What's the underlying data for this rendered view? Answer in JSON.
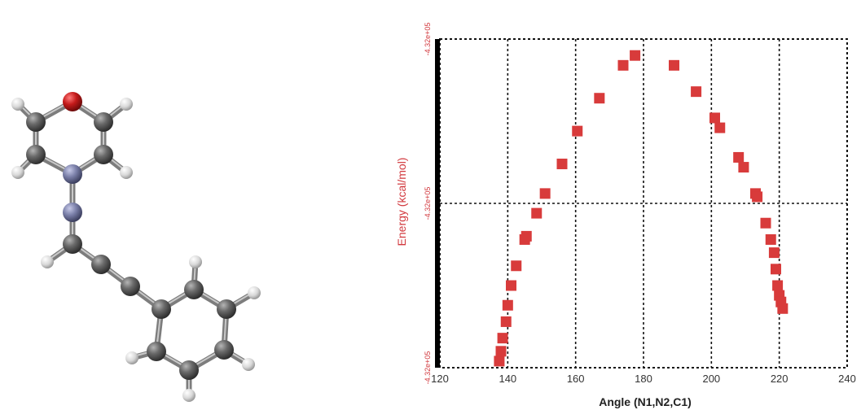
{
  "molecule": {
    "atoms": [
      {
        "el": "H",
        "color": "#d9d9d9",
        "r": 8
      },
      {
        "el": "C",
        "color": "#595959",
        "r": 12
      },
      {
        "el": "O",
        "color": "#c41a1a",
        "r": 12
      },
      {
        "el": "C",
        "color": "#595959",
        "r": 12
      },
      {
        "el": "H",
        "color": "#d9d9d9",
        "r": 8
      },
      {
        "el": "C",
        "color": "#595959",
        "r": 12
      },
      {
        "el": "C",
        "color": "#595959",
        "r": 12
      },
      {
        "el": "H",
        "color": "#d9d9d9",
        "r": 8
      },
      {
        "el": "H",
        "color": "#d9d9d9",
        "r": 8
      },
      {
        "el": "N",
        "color": "#7a7fa8",
        "r": 12
      },
      {
        "el": "N",
        "color": "#7a7fa8",
        "r": 12
      },
      {
        "el": "C",
        "color": "#595959",
        "r": 12
      },
      {
        "el": "H",
        "color": "#d9d9d9",
        "r": 8
      },
      {
        "el": "C",
        "color": "#595959",
        "r": 12
      },
      {
        "el": "C",
        "color": "#595959",
        "r": 12
      },
      {
        "el": "C",
        "color": "#595959",
        "r": 12
      },
      {
        "el": "C",
        "color": "#595959",
        "r": 12
      },
      {
        "el": "H",
        "color": "#d9d9d9",
        "r": 8
      },
      {
        "el": "C",
        "color": "#595959",
        "r": 12
      },
      {
        "el": "H",
        "color": "#d9d9d9",
        "r": 8
      },
      {
        "el": "C",
        "color": "#595959",
        "r": 12
      },
      {
        "el": "H",
        "color": "#d9d9d9",
        "r": 8
      },
      {
        "el": "C",
        "color": "#595959",
        "r": 12
      },
      {
        "el": "H",
        "color": "#d9d9d9",
        "r": 8
      },
      {
        "el": "C",
        "color": "#595959",
        "r": 12
      },
      {
        "el": "H",
        "color": "#d9d9d9",
        "r": 8
      }
    ]
  },
  "chart_data": {
    "type": "scatter",
    "xlabel": "Angle (N1,N2,C1)",
    "ylabel": "Energy (kcal/mol)",
    "xlim": [
      120,
      240
    ],
    "xticks": [
      "120",
      "140",
      "160",
      "180",
      "200",
      "220",
      "240"
    ],
    "ytick_labels": [
      "-4.32e+05",
      "-4.32e+05",
      "-4.32e+05"
    ],
    "ylim": [
      0,
      1
    ],
    "grid": true,
    "marker_color": "#d83b3b",
    "series": [
      {
        "x": [
          137.5,
          138.0,
          138.5,
          139.5,
          140.0,
          141.0,
          142.5,
          145.0,
          145.5,
          148.5,
          151.0,
          156.0,
          160.5,
          167.0,
          174.0,
          177.5,
          189.0,
          195.5,
          201.0,
          202.5,
          208.0,
          209.5,
          213.0,
          213.5,
          216.0,
          217.5,
          218.5,
          219.0,
          219.5,
          220.0,
          220.5,
          221.0
        ],
        "y": [
          0.02,
          0.05,
          0.09,
          0.14,
          0.19,
          0.25,
          0.31,
          0.39,
          0.4,
          0.47,
          0.53,
          0.62,
          0.72,
          0.82,
          0.92,
          0.95,
          0.92,
          0.84,
          0.76,
          0.73,
          0.64,
          0.61,
          0.53,
          0.52,
          0.44,
          0.39,
          0.35,
          0.3,
          0.25,
          0.22,
          0.2,
          0.18
        ]
      }
    ]
  }
}
